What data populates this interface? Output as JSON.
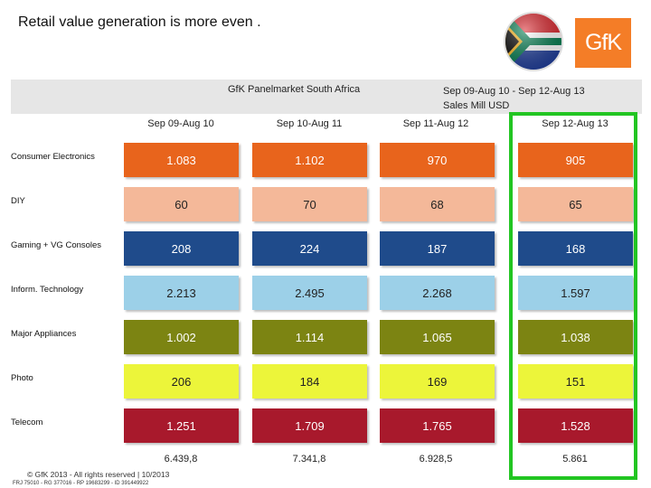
{
  "title": "Retail value generation is more even .",
  "panel_title": "GfK Panelmarket South Africa",
  "period_title_line1": "Sep 09-Aug 10 - Sep 12-Aug 13",
  "period_title_line2": "Sales Mill USD",
  "logo_text": "GfK",
  "columns": [
    "Sep 09-Aug 10",
    "Sep 10-Aug 11",
    "Sep 11-Aug 12",
    "Sep 12-Aug 13"
  ],
  "rows": [
    {
      "label": "Consumer Electronics",
      "values": [
        "1.083",
        "1.102",
        "970",
        "905"
      ],
      "color": "#e8641c",
      "text_color": "#ffffff"
    },
    {
      "label": "DIY",
      "values": [
        "60",
        "70",
        "68",
        "65"
      ],
      "color": "#f4b899",
      "text_color": "#222222"
    },
    {
      "label": "Gaming + VG Consoles",
      "values": [
        "208",
        "224",
        "187",
        "168"
      ],
      "color": "#1f4b8b",
      "text_color": "#ffffff"
    },
    {
      "label": "Inform. Technology",
      "values": [
        "2.213",
        "2.495",
        "2.268",
        "1.597"
      ],
      "color": "#9cd0e8",
      "text_color": "#222222"
    },
    {
      "label": "Major Appliances",
      "values": [
        "1.002",
        "1.114",
        "1.065",
        "1.038"
      ],
      "color": "#7c8412",
      "text_color": "#ffffff"
    },
    {
      "label": "Photo",
      "values": [
        "206",
        "184",
        "169",
        "151"
      ],
      "color": "#ecf53a",
      "text_color": "#222222"
    },
    {
      "label": "Telecom",
      "values": [
        "1.251",
        "1.709",
        "1.765",
        "1.528"
      ],
      "color": "#a8192c",
      "text_color": "#ffffff"
    }
  ],
  "totals": [
    "6.439,8",
    "7.341,8",
    "6.928,5",
    "5.861"
  ],
  "copyright": "© GfK 2013 - All rights reserved | 10/2013",
  "reference": "FRJ 75010 - RG 377016 - RP 19683299 - ID 391449922",
  "accent_color": "#22c522"
}
